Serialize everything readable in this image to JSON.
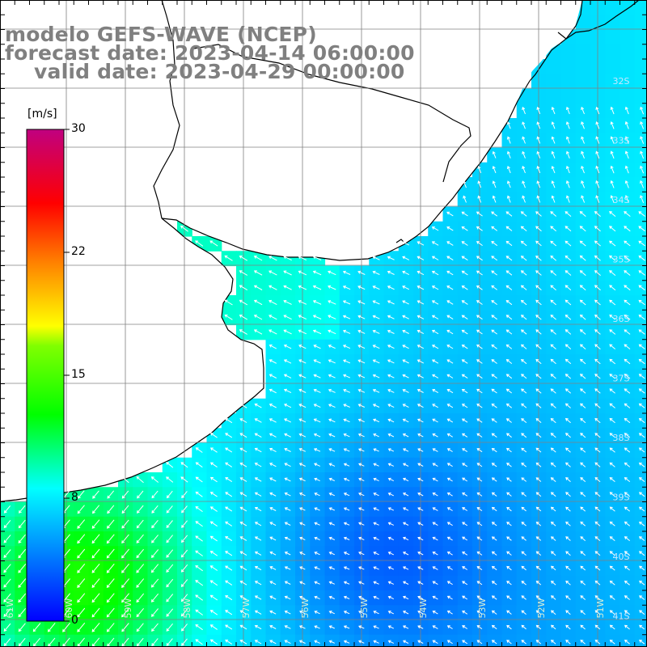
{
  "titles": {
    "model": "modelo GEFS-WAVE (NCEP)",
    "forecast": "forecast date: 2023-04-14 06:00:00",
    "valid": "valid date: 2023-04-29 00:00:00"
  },
  "colorbar": {
    "unit": "[m/s]",
    "labels": [
      "30",
      "22",
      "15",
      "8",
      "0"
    ],
    "range": [
      0,
      30
    ],
    "colors": [
      "#0000ff",
      "#00ffff",
      "#00ff00",
      "#ffff00",
      "#ff8000",
      "#ff0000",
      "#c00080"
    ]
  },
  "map_labels": {
    "latitudes": [
      "32S",
      "33S",
      "34S",
      "35S",
      "36S",
      "37S",
      "38S",
      "39S",
      "40S",
      "41S"
    ],
    "longitudes": [
      "61W",
      "60W",
      "59W",
      "58W",
      "57W",
      "56W",
      "55W",
      "54W",
      "53W",
      "52W",
      "51W"
    ]
  },
  "colors": {
    "land": "#ffffff",
    "coast": "#000000",
    "grid": "#808080",
    "arrows": "#ffffff"
  }
}
